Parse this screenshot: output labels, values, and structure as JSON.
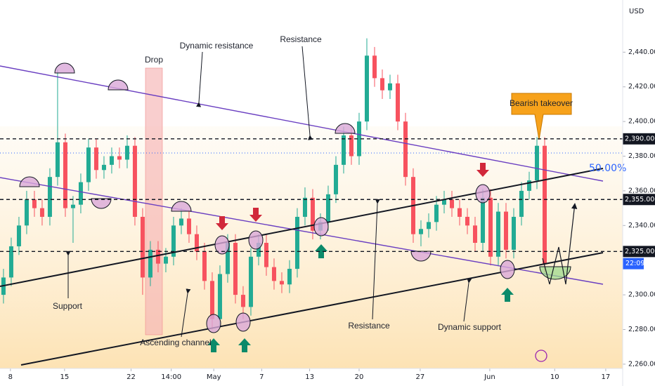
{
  "chart_data": {
    "type": "candlestick",
    "currency": "USD",
    "up_color": "#22ab94",
    "down_color": "#f7525f",
    "xlim": [
      -0.45,
      80
    ],
    "ylim": [
      2247.4,
      2470.1
    ],
    "xticks": [
      {
        "value": 0.9,
        "label": "8"
      },
      {
        "value": 7.9,
        "label": "15"
      },
      {
        "value": 16.5,
        "label": "22"
      },
      {
        "value": 21.7,
        "label": "14:00"
      },
      {
        "value": 27.2,
        "label": "May"
      },
      {
        "value": 33.4,
        "label": "7"
      },
      {
        "value": 39.6,
        "label": "13"
      },
      {
        "value": 46,
        "label": "20"
      },
      {
        "value": 53.9,
        "label": "27"
      },
      {
        "value": 62.9,
        "label": "Jun"
      },
      {
        "value": 71.3,
        "label": "10"
      },
      {
        "value": 77.9,
        "label": "17"
      }
    ],
    "yticks": [
      {
        "value": 2440,
        "label": "2,440.000"
      },
      {
        "value": 2420,
        "label": "2,420.000"
      },
      {
        "value": 2400,
        "label": "2,400.000"
      },
      {
        "value": 2380,
        "label": "2,380.000"
      },
      {
        "value": 2360,
        "label": "2,360.000"
      },
      {
        "value": 2340,
        "label": "2,340.000"
      },
      {
        "value": 2300,
        "label": "2,300.000"
      },
      {
        "value": 2280,
        "label": "2,280.000"
      },
      {
        "value": 2260,
        "label": "2,260.000"
      }
    ],
    "open": [
      2300,
      2310,
      2328,
      2340,
      2355,
      2350,
      2345,
      2368,
      2388,
      2350,
      2352,
      2365,
      2385,
      2372,
      2375,
      2380,
      2378,
      2386,
      2345,
      2310,
      2326,
      2318,
      2322,
      2340,
      2344,
      2335,
      2325,
      2308,
      2286,
      2312,
      2330,
      2300,
      2293,
      2322,
      2330,
      2316,
      2308,
      2306,
      2315,
      2345,
      2356,
      2337,
      2342,
      2358,
      2375,
      2392,
      2380,
      2400,
      2438,
      2425,
      2418,
      2422,
      2400,
      2368,
      2335,
      2338,
      2342,
      2352,
      2355,
      2350,
      2345,
      2340,
      2330,
      2356,
      2322,
      2348,
      2326,
      2345,
      2360,
      2366,
      2386
    ],
    "high": [
      2315,
      2333,
      2345,
      2360,
      2360,
      2355,
      2373,
      2430,
      2393,
      2357,
      2370,
      2390,
      2390,
      2380,
      2385,
      2385,
      2392,
      2391,
      2350,
      2331,
      2331,
      2327,
      2345,
      2350,
      2349,
      2340,
      2330,
      2313,
      2317,
      2335,
      2335,
      2305,
      2327,
      2335,
      2335,
      2321,
      2313,
      2320,
      2350,
      2362,
      2361,
      2347,
      2363,
      2380,
      2397,
      2397,
      2405,
      2448,
      2443,
      2430,
      2427,
      2427,
      2405,
      2373,
      2343,
      2347,
      2357,
      2360,
      2360,
      2355,
      2350,
      2345,
      2361,
      2361,
      2353,
      2353,
      2350,
      2365,
      2371,
      2391,
      2391
    ],
    "low": [
      2295,
      2305,
      2323,
      2335,
      2345,
      2340,
      2340,
      2363,
      2345,
      2330,
      2347,
      2360,
      2367,
      2367,
      2370,
      2373,
      2373,
      2340,
      2300,
      2305,
      2313,
      2313,
      2317,
      2335,
      2330,
      2320,
      2303,
      2280,
      2281,
      2307,
      2295,
      2286,
      2288,
      2317,
      2311,
      2303,
      2301,
      2301,
      2310,
      2340,
      2332,
      2332,
      2337,
      2353,
      2370,
      2375,
      2375,
      2395,
      2420,
      2413,
      2413,
      2395,
      2363,
      2330,
      2328,
      2333,
      2337,
      2347,
      2345,
      2340,
      2335,
      2325,
      2325,
      2317,
      2317,
      2321,
      2321,
      2340,
      2355,
      2361,
      2313
    ],
    "close": [
      2310,
      2328,
      2340,
      2355,
      2350,
      2345,
      2368,
      2388,
      2350,
      2352,
      2365,
      2385,
      2372,
      2375,
      2380,
      2378,
      2386,
      2345,
      2310,
      2326,
      2318,
      2322,
      2340,
      2344,
      2335,
      2325,
      2308,
      2286,
      2312,
      2330,
      2300,
      2293,
      2322,
      2330,
      2316,
      2308,
      2306,
      2315,
      2345,
      2356,
      2337,
      2342,
      2358,
      2375,
      2392,
      2380,
      2400,
      2438,
      2425,
      2418,
      2422,
      2400,
      2368,
      2335,
      2338,
      2342,
      2352,
      2355,
      2350,
      2345,
      2340,
      2330,
      2356,
      2322,
      2348,
      2326,
      2345,
      2360,
      2366,
      2386,
      2318
    ],
    "levels": [
      {
        "value": 2390,
        "label": "2,390.000"
      },
      {
        "value": 2355,
        "label": "2,355.000"
      },
      {
        "value": 2325,
        "label": "2,325.000"
      }
    ],
    "countdown": "22:09",
    "fib_label": "50.00%",
    "annotations": [
      "Drop",
      "Dynamic resistance",
      "Resistance",
      "Bearish takeover",
      "Support",
      "Ascending channel",
      "Resistance",
      "Dynamic support"
    ]
  }
}
